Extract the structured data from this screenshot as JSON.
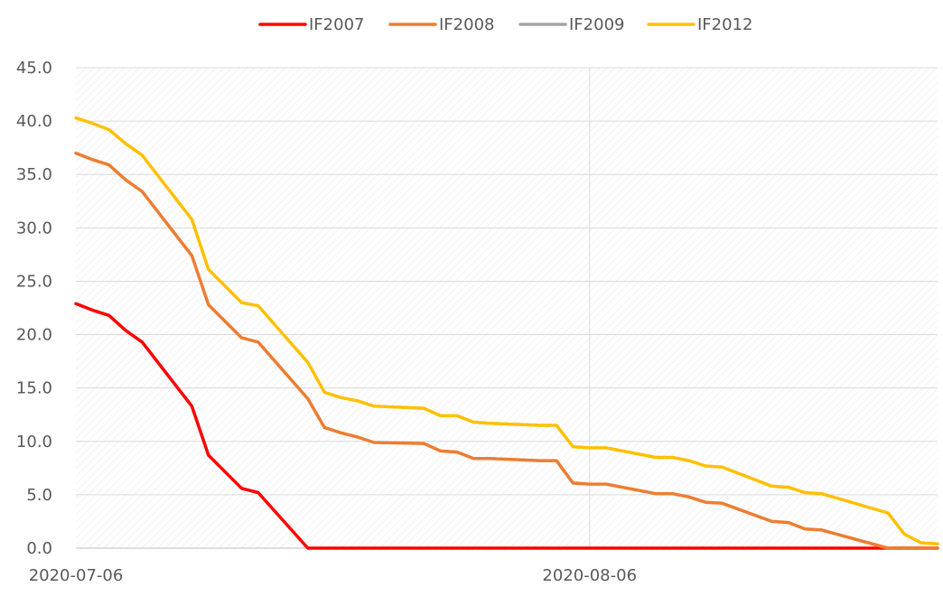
{
  "chart_data": {
    "type": "line",
    "title": "",
    "xlabel": "",
    "ylabel": "",
    "ylim": [
      0,
      45
    ],
    "yticks": [
      "0.0",
      "5.0",
      "10.0",
      "15.0",
      "20.0",
      "25.0",
      "30.0",
      "35.0",
      "40.0",
      "45.0"
    ],
    "xticks": [
      "2020-07-06",
      "2020-08-06"
    ],
    "x_range": [
      "2020-07-06",
      "2020-08-27"
    ],
    "grid": "horizontal and vertical",
    "legend_position": "top",
    "series": [
      {
        "name": "IF2007",
        "color": "#ff0000",
        "points": [
          [
            "2020-07-06",
            22.9
          ],
          [
            "2020-07-07",
            22.3
          ],
          [
            "2020-07-08",
            21.8
          ],
          [
            "2020-07-09",
            20.4
          ],
          [
            "2020-07-10",
            19.3
          ],
          [
            "2020-07-13",
            13.3
          ],
          [
            "2020-07-14",
            8.7
          ],
          [
            "2020-07-16",
            5.6
          ],
          [
            "2020-07-17",
            5.2
          ],
          [
            "2020-07-20",
            0.0
          ],
          [
            "2020-08-27",
            0.0
          ]
        ]
      },
      {
        "name": "IF2008",
        "color": "#ed7d31",
        "points": [
          [
            "2020-07-06",
            37.0
          ],
          [
            "2020-07-07",
            36.4
          ],
          [
            "2020-07-08",
            35.9
          ],
          [
            "2020-07-09",
            34.5
          ],
          [
            "2020-07-10",
            33.4
          ],
          [
            "2020-07-13",
            27.4
          ],
          [
            "2020-07-14",
            22.8
          ],
          [
            "2020-07-16",
            19.7
          ],
          [
            "2020-07-17",
            19.3
          ],
          [
            "2020-07-20",
            14.0
          ],
          [
            "2020-07-21",
            11.3
          ],
          [
            "2020-07-22",
            10.8
          ],
          [
            "2020-07-23",
            10.4
          ],
          [
            "2020-07-24",
            9.9
          ],
          [
            "2020-07-27",
            9.8
          ],
          [
            "2020-07-28",
            9.1
          ],
          [
            "2020-07-29",
            9.0
          ],
          [
            "2020-07-30",
            8.4
          ],
          [
            "2020-07-31",
            8.4
          ],
          [
            "2020-08-03",
            8.2
          ],
          [
            "2020-08-04",
            8.2
          ],
          [
            "2020-08-05",
            6.1
          ],
          [
            "2020-08-06",
            6.0
          ],
          [
            "2020-08-07",
            6.0
          ],
          [
            "2020-08-10",
            5.1
          ],
          [
            "2020-08-11",
            5.1
          ],
          [
            "2020-08-12",
            4.8
          ],
          [
            "2020-08-13",
            4.3
          ],
          [
            "2020-08-14",
            4.2
          ],
          [
            "2020-08-17",
            2.5
          ],
          [
            "2020-08-18",
            2.4
          ],
          [
            "2020-08-19",
            1.8
          ],
          [
            "2020-08-20",
            1.7
          ],
          [
            "2020-08-24",
            0.0
          ],
          [
            "2020-08-27",
            0.0
          ]
        ]
      },
      {
        "name": "IF2009",
        "color": "#a5a5a5",
        "points": []
      },
      {
        "name": "IF2012",
        "color": "#ffc000",
        "points": [
          [
            "2020-07-06",
            40.3
          ],
          [
            "2020-07-07",
            39.8
          ],
          [
            "2020-07-08",
            39.2
          ],
          [
            "2020-07-09",
            37.9
          ],
          [
            "2020-07-10",
            36.8
          ],
          [
            "2020-07-13",
            30.8
          ],
          [
            "2020-07-14",
            26.1
          ],
          [
            "2020-07-16",
            23.0
          ],
          [
            "2020-07-17",
            22.7
          ],
          [
            "2020-07-20",
            17.4
          ],
          [
            "2020-07-21",
            14.6
          ],
          [
            "2020-07-22",
            14.1
          ],
          [
            "2020-07-23",
            13.8
          ],
          [
            "2020-07-24",
            13.3
          ],
          [
            "2020-07-27",
            13.1
          ],
          [
            "2020-07-28",
            12.4
          ],
          [
            "2020-07-29",
            12.4
          ],
          [
            "2020-07-30",
            11.8
          ],
          [
            "2020-07-31",
            11.7
          ],
          [
            "2020-08-03",
            11.5
          ],
          [
            "2020-08-04",
            11.5
          ],
          [
            "2020-08-05",
            9.5
          ],
          [
            "2020-08-06",
            9.4
          ],
          [
            "2020-08-07",
            9.4
          ],
          [
            "2020-08-10",
            8.5
          ],
          [
            "2020-08-11",
            8.5
          ],
          [
            "2020-08-12",
            8.2
          ],
          [
            "2020-08-13",
            7.7
          ],
          [
            "2020-08-14",
            7.6
          ],
          [
            "2020-08-17",
            5.8
          ],
          [
            "2020-08-18",
            5.7
          ],
          [
            "2020-08-19",
            5.2
          ],
          [
            "2020-08-20",
            5.1
          ],
          [
            "2020-08-24",
            3.3
          ],
          [
            "2020-08-25",
            1.3
          ],
          [
            "2020-08-26",
            0.5
          ],
          [
            "2020-08-27",
            0.4
          ]
        ]
      }
    ]
  }
}
